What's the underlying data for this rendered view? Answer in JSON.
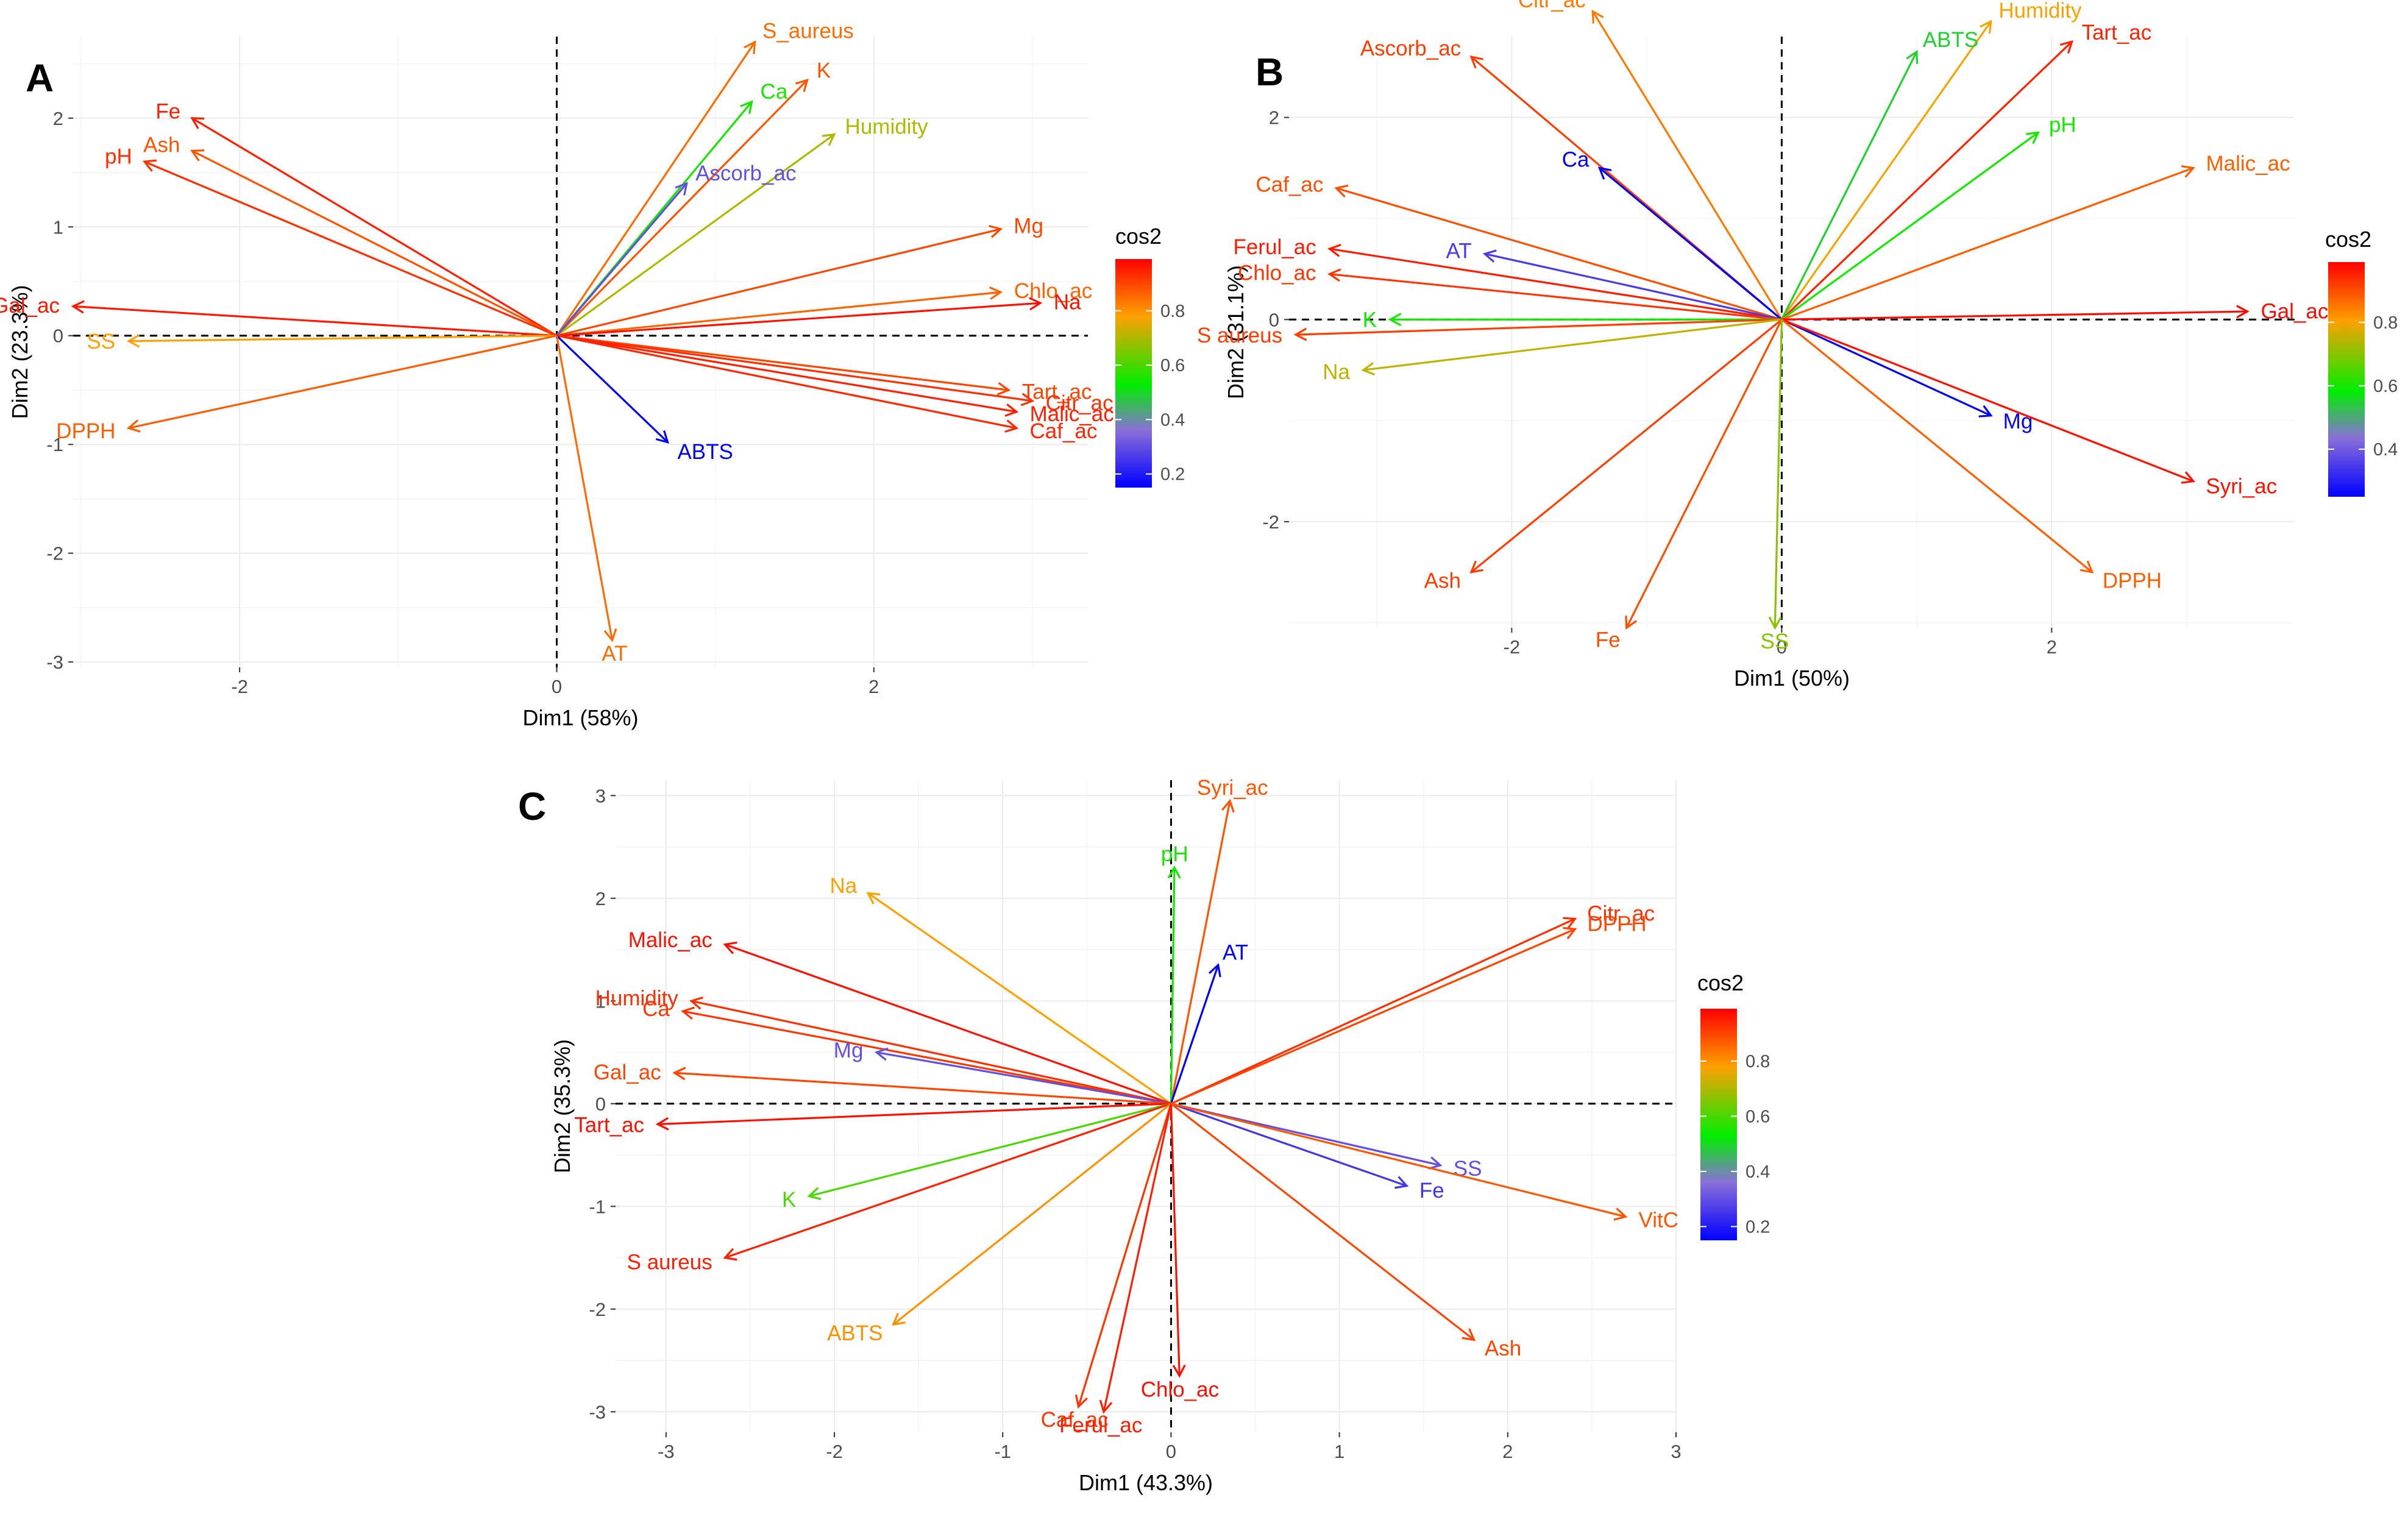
{
  "legend": {
    "title": "cos2"
  },
  "colors": {
    "low": "#0000ff",
    "mid": "#00ee00",
    "high": "#ff0000"
  },
  "chart_data": [
    {
      "type": "scatter",
      "subtype": "pca-variable-biplot",
      "panel_label": "A",
      "title": "",
      "xlabel": "Dim1 (58%)",
      "ylabel": "Dim2 (23.3%)",
      "xlim": [
        -3.05,
        3.35
      ],
      "ylim": [
        -3.05,
        2.75
      ],
      "xticks": [
        -2,
        0,
        2
      ],
      "yticks": [
        -3,
        -2,
        -1,
        0,
        1,
        2
      ],
      "legend_ticks": [
        0.2,
        0.4,
        0.6,
        0.8
      ],
      "color_range": [
        0.15,
        0.99
      ],
      "variables": [
        {
          "name": "S_aureus",
          "x": 1.25,
          "y": 2.7,
          "cos2": 0.85
        },
        {
          "name": "Ca",
          "x": 1.23,
          "y": 2.15,
          "cos2": 0.55
        },
        {
          "name": "K",
          "x": 1.58,
          "y": 2.35,
          "cos2": 0.88
        },
        {
          "name": "Humidity",
          "x": 1.75,
          "y": 1.85,
          "cos2": 0.7
        },
        {
          "name": "Ascorb_ac",
          "x": 0.82,
          "y": 1.4,
          "cos2": 0.3
        },
        {
          "name": "Fe",
          "x": -2.3,
          "y": 2.0,
          "cos2": 0.95
        },
        {
          "name": "Ash",
          "x": -2.3,
          "y": 1.7,
          "cos2": 0.88
        },
        {
          "name": "pH",
          "x": -2.6,
          "y": 1.6,
          "cos2": 0.93
        },
        {
          "name": "Gal_ac",
          "x": -3.05,
          "y": 0.27,
          "cos2": 0.96
        },
        {
          "name": "SS",
          "x": -2.7,
          "y": -0.05,
          "cos2": 0.78
        },
        {
          "name": "DPPH",
          "x": -2.7,
          "y": -0.85,
          "cos2": 0.87
        },
        {
          "name": "Mg",
          "x": 2.8,
          "y": 0.98,
          "cos2": 0.9
        },
        {
          "name": "Chlo_ac",
          "x": 2.8,
          "y": 0.4,
          "cos2": 0.86
        },
        {
          "name": "Na",
          "x": 3.05,
          "y": 0.3,
          "cos2": 0.97
        },
        {
          "name": "Tart_ac",
          "x": 2.85,
          "y": -0.5,
          "cos2": 0.9
        },
        {
          "name": "Citr_ac",
          "x": 3.0,
          "y": -0.6,
          "cos2": 0.93
        },
        {
          "name": "Malic_ac",
          "x": 2.9,
          "y": -0.7,
          "cos2": 0.95
        },
        {
          "name": "Caf_ac",
          "x": 2.9,
          "y": -0.85,
          "cos2": 0.94
        },
        {
          "name": "ABTS",
          "x": 0.7,
          "y": -0.98,
          "cos2": 0.15
        },
        {
          "name": "AT",
          "x": 0.35,
          "y": -2.8,
          "cos2": 0.85
        }
      ]
    },
    {
      "type": "scatter",
      "subtype": "pca-variable-biplot",
      "panel_label": "B",
      "title": "",
      "xlabel": "Dim1 (50%)",
      "ylabel": "Dim2 (31.1%)",
      "xlim": [
        -3.65,
        3.8
      ],
      "ylim": [
        -3.05,
        2.8
      ],
      "xticks": [
        -2,
        0,
        2
      ],
      "yticks": [
        -2,
        0,
        2
      ],
      "legend_ticks": [
        0.4,
        0.6,
        0.8
      ],
      "color_range": [
        0.25,
        0.99
      ],
      "variables": [
        {
          "name": "Ascorb_ac",
          "x": -2.3,
          "y": 2.6,
          "cos2": 0.92
        },
        {
          "name": "Citr_ac",
          "x": -1.4,
          "y": 3.05,
          "cos2": 0.85
        },
        {
          "name": "Humidity",
          "x": 1.55,
          "y": 2.95,
          "cos2": 0.8
        },
        {
          "name": "ABTS",
          "x": 1.0,
          "y": 2.65,
          "cos2": 0.55
        },
        {
          "name": "Tart_ac",
          "x": 2.15,
          "y": 2.75,
          "cos2": 0.95
        },
        {
          "name": "pH",
          "x": 1.9,
          "y": 1.85,
          "cos2": 0.6
        },
        {
          "name": "Malic_ac",
          "x": 3.05,
          "y": 1.5,
          "cos2": 0.88
        },
        {
          "name": "Ca",
          "x": -1.35,
          "y": 1.5,
          "cos2": 0.25
        },
        {
          "name": "Caf_ac",
          "x": -3.3,
          "y": 1.3,
          "cos2": 0.9
        },
        {
          "name": "Ferul_ac",
          "x": -3.35,
          "y": 0.7,
          "cos2": 0.96
        },
        {
          "name": "AT",
          "x": -2.2,
          "y": 0.65,
          "cos2": 0.35
        },
        {
          "name": "Chlo_ac",
          "x": -3.35,
          "y": 0.45,
          "cos2": 0.93
        },
        {
          "name": "K",
          "x": -2.9,
          "y": 0.0,
          "cos2": 0.6
        },
        {
          "name": "S aureus",
          "x": -3.6,
          "y": -0.15,
          "cos2": 0.92
        },
        {
          "name": "Na",
          "x": -3.1,
          "y": -0.5,
          "cos2": 0.75
        },
        {
          "name": "Gal_ac",
          "x": 3.45,
          "y": 0.08,
          "cos2": 0.98
        },
        {
          "name": "Mg",
          "x": 1.55,
          "y": -0.95,
          "cos2": 0.25
        },
        {
          "name": "Syri_ac",
          "x": 3.05,
          "y": -1.6,
          "cos2": 0.97
        },
        {
          "name": "DPPH",
          "x": 2.3,
          "y": -2.5,
          "cos2": 0.88
        },
        {
          "name": "Ash",
          "x": -2.3,
          "y": -2.5,
          "cos2": 0.92
        },
        {
          "name": "Fe",
          "x": -1.15,
          "y": -3.05,
          "cos2": 0.9
        },
        {
          "name": "SS",
          "x": -0.05,
          "y": -3.05,
          "cos2": 0.7
        }
      ]
    },
    {
      "type": "scatter",
      "subtype": "pca-variable-biplot",
      "panel_label": "C",
      "title": "",
      "xlabel": "Dim1 (43.3%)",
      "ylabel": "Dim2 (35.3%)",
      "xlim": [
        -3.3,
        3.0
      ],
      "ylim": [
        -3.2,
        3.15
      ],
      "xticks": [
        -3,
        -2,
        -1,
        0,
        1,
        2,
        3
      ],
      "yticks": [
        -3,
        -2,
        -1,
        0,
        1,
        2,
        3
      ],
      "legend_ticks": [
        0.2,
        0.4,
        0.6,
        0.8
      ],
      "color_range": [
        0.15,
        0.99
      ],
      "variables": [
        {
          "name": "Syri_ac",
          "x": 0.35,
          "y": 2.95,
          "cos2": 0.88
        },
        {
          "name": "pH",
          "x": 0.02,
          "y": 2.3,
          "cos2": 0.55
        },
        {
          "name": "AT",
          "x": 0.28,
          "y": 1.35,
          "cos2": 0.15
        },
        {
          "name": "Na",
          "x": -1.8,
          "y": 2.05,
          "cos2": 0.78
        },
        {
          "name": "Malic_ac",
          "x": -2.65,
          "y": 1.55,
          "cos2": 0.97
        },
        {
          "name": "Humidity",
          "x": -2.85,
          "y": 1.0,
          "cos2": 0.93
        },
        {
          "name": "Ca",
          "x": -2.9,
          "y": 0.9,
          "cos2": 0.92
        },
        {
          "name": "Mg",
          "x": -1.75,
          "y": 0.5,
          "cos2": 0.3
        },
        {
          "name": "Gal_ac",
          "x": -2.95,
          "y": 0.3,
          "cos2": 0.9
        },
        {
          "name": "Tart_ac",
          "x": -3.05,
          "y": -0.2,
          "cos2": 0.97
        },
        {
          "name": "K",
          "x": -2.15,
          "y": -0.9,
          "cos2": 0.6
        },
        {
          "name": "S aureus",
          "x": -2.65,
          "y": -1.5,
          "cos2": 0.95
        },
        {
          "name": "ABTS",
          "x": -1.65,
          "y": -2.15,
          "cos2": 0.8
        },
        {
          "name": "Caf_ac",
          "x": -0.55,
          "y": -2.95,
          "cos2": 0.92
        },
        {
          "name": "Ferul_ac",
          "x": -0.4,
          "y": -3.0,
          "cos2": 0.95
        },
        {
          "name": "Chlo_ac",
          "x": 0.05,
          "y": -2.65,
          "cos2": 0.97
        },
        {
          "name": "Citr_ac",
          "x": 2.4,
          "y": 1.8,
          "cos2": 0.93
        },
        {
          "name": "DPPH",
          "x": 2.4,
          "y": 1.7,
          "cos2": 0.9
        },
        {
          "name": "SS",
          "x": 1.6,
          "y": -0.6,
          "cos2": 0.3
        },
        {
          "name": "Fe",
          "x": 1.4,
          "y": -0.8,
          "cos2": 0.25
        },
        {
          "name": "VitC",
          "x": 2.7,
          "y": -1.1,
          "cos2": 0.88
        },
        {
          "name": "Ash",
          "x": 1.8,
          "y": -2.3,
          "cos2": 0.9
        }
      ]
    }
  ]
}
